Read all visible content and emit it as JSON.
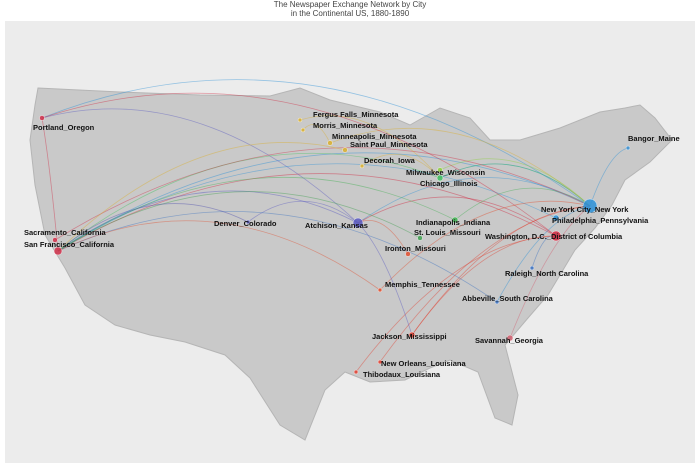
{
  "header": {
    "title_lines": [
      "The Newspaper Exchange Network by City",
      "in the Continental US, 1880-1890"
    ]
  },
  "cities": [
    {
      "label": "Portland_Oregon",
      "color": "#d0304a"
    },
    {
      "label": "Fergus Falls_Minnesota",
      "color": "#d9b030"
    },
    {
      "label": "Morris_Minnesota",
      "color": "#d9b030"
    },
    {
      "label": "Minneapolis_Minnesota",
      "color": "#d9b030"
    },
    {
      "label": "Saint Paul_Minnesota",
      "color": "#d9b030"
    },
    {
      "label": "Bangor_Maine",
      "color": "#3a8fd0"
    },
    {
      "label": "Decorah_Iowa",
      "color": "#d9b030"
    },
    {
      "label": "Milwaukee_Wisconsin",
      "color": "#8fd040"
    },
    {
      "label": "Chicago_Illinois",
      "color": "#40c060"
    },
    {
      "label": "New York City_New York",
      "color": "#2a90d8"
    },
    {
      "label": "Philadelphia_Pennsylvania",
      "color": "#2a90d8"
    },
    {
      "label": "Denver_Colorado",
      "color": "#5050b0"
    },
    {
      "label": "Atchison_Kansas",
      "color": "#5858c0"
    },
    {
      "label": "Indianapolis_Indiana",
      "color": "#40b050"
    },
    {
      "label": "Washington, D.C._District of Columbia",
      "color": "#d02840"
    },
    {
      "label": "Sacramento_California",
      "color": "#d0304a"
    },
    {
      "label": "San Francisco_California",
      "color": "#d0304a"
    },
    {
      "label": "St. Louis_Missouri",
      "color": "#40a050"
    },
    {
      "label": "Ironton_Missouri",
      "color": "#e05030"
    },
    {
      "label": "Raleigh_North Carolina",
      "color": "#3a70c0"
    },
    {
      "label": "Memphis_Tennessee",
      "color": "#e05030"
    },
    {
      "label": "Abbeville_South Carolina",
      "color": "#3a70c0"
    },
    {
      "label": "Jackson_Mississippi",
      "color": "#e04030"
    },
    {
      "label": "Savannah_Georgia",
      "color": "#d06070"
    },
    {
      "label": "New Orleans_Louisiana",
      "color": "#e04030"
    },
    {
      "label": "Thibodaux_Louisiana",
      "color": "#e04030"
    }
  ]
}
